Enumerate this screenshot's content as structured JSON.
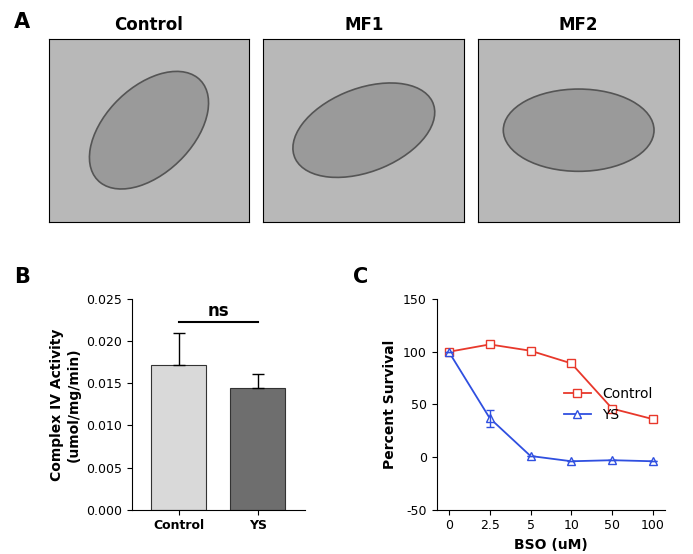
{
  "image_panel": {
    "panel_label": "A",
    "titles": [
      "Control",
      "MF1",
      "MF2"
    ]
  },
  "chart_data": [
    {
      "type": "bar",
      "panel_label": "B",
      "categories": [
        "Control",
        "YS"
      ],
      "values": [
        0.0172,
        0.0145
      ],
      "errors": [
        0.0038,
        0.0016
      ],
      "colors": [
        "#d9d9d9",
        "#6e6e6e"
      ],
      "y_label": "Complex IV Activity\n(umol/mg/min)",
      "ylim": [
        0,
        0.025
      ],
      "yticks": [
        {
          "value": 0,
          "label": "0.000"
        },
        {
          "value": 0.005,
          "label": "0.005"
        },
        {
          "value": 0.01,
          "label": "0.010"
        },
        {
          "value": 0.015,
          "label": "0.015"
        },
        {
          "value": 0.02,
          "label": "0.020"
        },
        {
          "value": 0.025,
          "label": "0.025"
        }
      ],
      "annotation": "ns"
    },
    {
      "type": "line",
      "panel_label": "C",
      "categories": [
        "0",
        "2.5",
        "5",
        "10",
        "50",
        "100"
      ],
      "x_label": "BSO (uM)",
      "y_label": "Percent Survival",
      "ylim": [
        -50,
        150
      ],
      "yticks": [
        -50,
        0,
        50,
        100,
        150
      ],
      "legend": "right",
      "series": [
        {
          "name": "Control",
          "color": "#e8382b",
          "marker": "square",
          "values": [
            100,
            107,
            101,
            89,
            46,
            36
          ]
        },
        {
          "name": "YS",
          "color": "#2f4fe0",
          "marker": "triangle",
          "values": [
            100,
            37,
            1,
            -4,
            -3,
            -4
          ],
          "errors": [
            0,
            8,
            0,
            0,
            0,
            0
          ]
        }
      ]
    }
  ]
}
